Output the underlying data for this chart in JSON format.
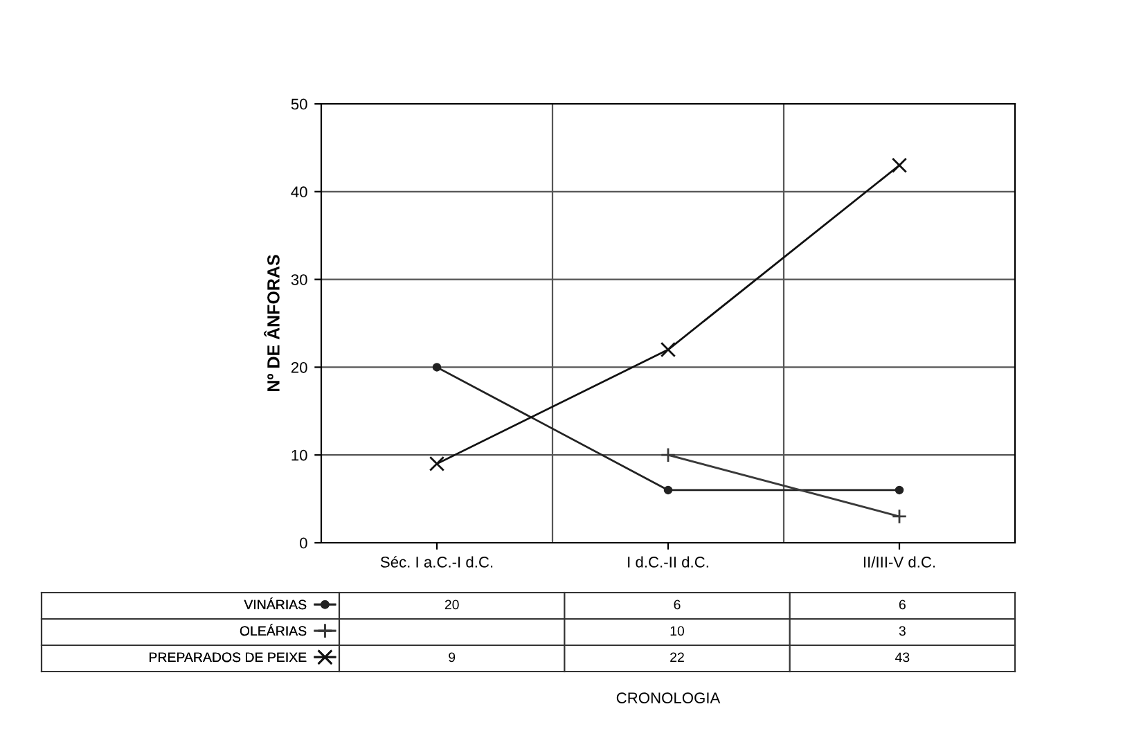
{
  "chart_data": {
    "type": "line",
    "ylabel": "Nº DE ÂNFORAS",
    "annotations": [
      "CRONOLOGIA"
    ],
    "categories": [
      "Séc. I a.C.-I d.C.",
      "I d.C.-II d.C.",
      "II/III-V d.C."
    ],
    "series": [
      {
        "name": "VINÁRIAS",
        "color": "#222222",
        "marker": "circle",
        "values": [
          20,
          6,
          6
        ]
      },
      {
        "name": "OLEÁRIAS",
        "color": "#3a3a3a",
        "marker": "cross",
        "values": [
          null,
          10,
          3
        ]
      },
      {
        "name": "PREPARADOS DE PEIXE",
        "color": "#111111",
        "marker": "x",
        "values": [
          9,
          22,
          43
        ]
      }
    ],
    "ylim": [
      0,
      50
    ],
    "yticks": [
      0,
      10,
      20,
      30,
      40,
      50
    ],
    "grid": true,
    "legend": "bottom left",
    "data_labels": true,
    "line_style": "solid"
  }
}
